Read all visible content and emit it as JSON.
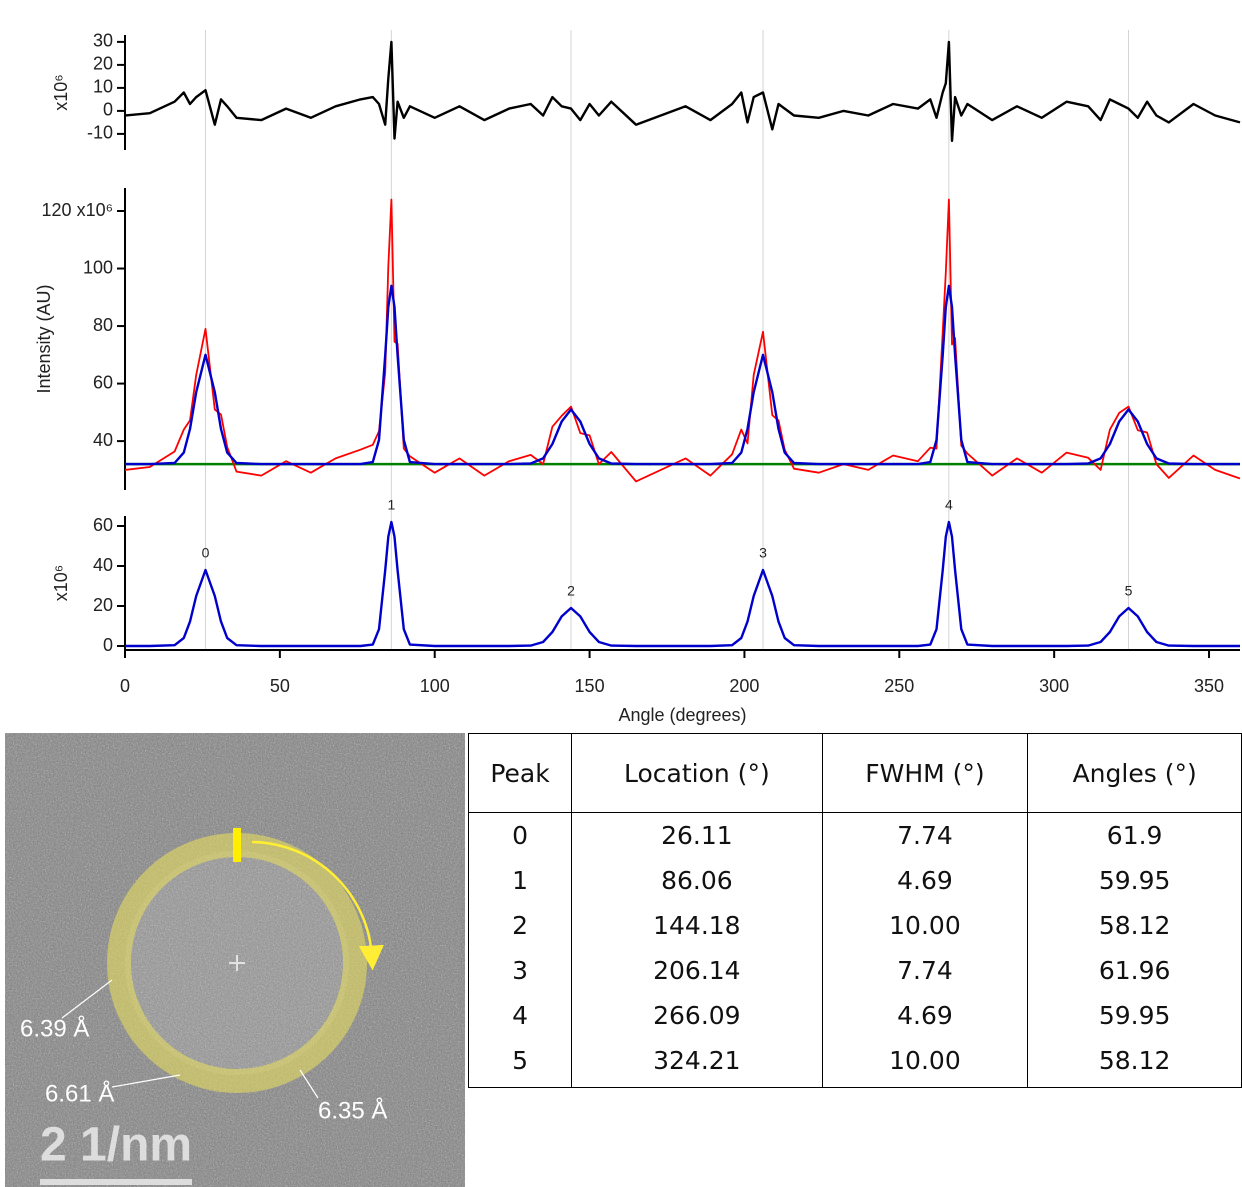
{
  "chart_data": [
    {
      "type": "line",
      "ylabel": "x10⁶",
      "x": [
        0,
        8,
        16,
        19,
        21,
        23,
        26,
        29,
        31,
        33,
        36,
        44,
        52,
        60,
        68,
        76,
        80,
        82,
        84,
        85,
        86,
        87,
        88,
        90,
        92,
        100,
        108,
        116,
        124,
        131,
        135,
        138,
        141,
        144,
        147,
        150,
        153,
        157,
        165,
        173,
        181,
        189,
        196,
        199,
        201,
        203,
        206,
        209,
        211,
        213,
        216,
        224,
        232,
        240,
        248,
        256,
        260,
        262,
        264,
        265,
        266,
        267,
        268,
        270,
        272,
        280,
        288,
        296,
        304,
        311,
        315,
        318,
        321,
        324,
        327,
        330,
        333,
        337,
        345,
        352,
        360
      ],
      "series": [
        {
          "color": "#000000",
          "values": [
            -2,
            -1,
            4,
            8,
            3,
            6,
            9,
            -6,
            5,
            2,
            -3,
            -4,
            1,
            -3,
            2,
            5,
            6,
            3,
            -6,
            14,
            30,
            -12,
            4,
            -3,
            2,
            -3,
            2,
            -4,
            1,
            3,
            -2,
            6,
            2,
            1,
            -4,
            3,
            -2,
            4,
            -6,
            -2,
            2,
            -4,
            3,
            8,
            -5,
            6,
            8,
            -8,
            3,
            1,
            -2,
            -3,
            0,
            -2,
            3,
            1,
            5,
            -3,
            8,
            12,
            30,
            -13,
            6,
            -2,
            3,
            -4,
            2,
            -3,
            4,
            2,
            -4,
            5,
            3,
            1,
            -3,
            4,
            -2,
            -5,
            3,
            -2,
            -5
          ]
        }
      ],
      "xlim": [
        0,
        360
      ],
      "ylim": [
        -17,
        33
      ],
      "yticks": [
        -10,
        0,
        10,
        20,
        30
      ]
    },
    {
      "type": "line",
      "ylabel": "Intensity (AU)",
      "x": [
        0,
        8,
        16,
        19,
        21,
        23,
        26,
        29,
        31,
        33,
        36,
        44,
        52,
        60,
        68,
        76,
        80,
        82,
        84,
        85,
        86,
        87,
        88,
        90,
        92,
        100,
        108,
        116,
        124,
        131,
        135,
        138,
        141,
        144,
        147,
        150,
        153,
        157,
        165,
        173,
        181,
        189,
        196,
        199,
        201,
        203,
        206,
        209,
        211,
        213,
        216,
        224,
        232,
        240,
        248,
        256,
        260,
        262,
        264,
        265,
        266,
        267,
        268,
        270,
        272,
        280,
        288,
        296,
        304,
        311,
        315,
        318,
        321,
        324,
        327,
        330,
        333,
        337,
        345,
        352,
        360
      ],
      "series": [
        {
          "color": "#ff0000",
          "values": [
            30,
            31,
            36.4,
            44,
            47.2,
            63,
            79,
            51,
            49.2,
            38,
            29.4,
            28,
            33,
            29,
            34,
            37,
            38.7,
            43.4,
            63.8,
            100.6,
            124,
            74.6,
            73.8,
            37.4,
            34.7,
            29,
            34,
            28,
            33,
            35.2,
            32,
            45,
            48.8,
            52,
            42.8,
            42,
            32,
            36.2,
            26,
            30,
            34,
            28,
            35.4,
            44,
            39.2,
            63,
            78,
            49,
            47.2,
            37,
            30.4,
            29,
            32,
            30,
            35,
            33,
            37.7,
            37.4,
            77.8,
            98.6,
            124,
            73.6,
            75.8,
            38.4,
            35.7,
            28,
            34,
            29,
            36,
            34.2,
            30,
            44,
            49.8,
            52,
            43.8,
            43,
            32,
            27.2,
            35,
            30,
            27
          ]
        },
        {
          "color": "#0000cc",
          "values": [
            32,
            32,
            32.4,
            36,
            44.2,
            57,
            70,
            57,
            44.2,
            36,
            32.4,
            32,
            32,
            32,
            32,
            32,
            32.7,
            40.4,
            69.8,
            86.6,
            94,
            86.6,
            69.8,
            40.4,
            32.7,
            32,
            32,
            32,
            32,
            32.2,
            34,
            39,
            46.8,
            51,
            46.8,
            39,
            34,
            32.2,
            32,
            32,
            32,
            32,
            32.4,
            36,
            44.2,
            57,
            70,
            57,
            44.2,
            36,
            32.4,
            32,
            32,
            32,
            32,
            32,
            32.7,
            40.4,
            69.8,
            86.6,
            94,
            86.6,
            69.8,
            40.4,
            32.7,
            32,
            32,
            32,
            32,
            32.2,
            34,
            39,
            46.8,
            51,
            46.8,
            39,
            34,
            32.2,
            32,
            32,
            32
          ]
        }
      ],
      "hlines": [
        {
          "value": 32,
          "color": "#008000"
        }
      ],
      "xlim": [
        0,
        360
      ],
      "ylim": [
        23,
        128
      ],
      "yticks": [
        40,
        60,
        80,
        100,
        {
          "value": 120,
          "label": "120 x10⁶"
        }
      ]
    },
    {
      "type": "line",
      "ylabel": "x10⁶",
      "xlabel": "Angle (degrees)",
      "x": [
        0,
        8,
        16,
        19,
        21,
        23,
        26,
        29,
        31,
        33,
        36,
        44,
        52,
        60,
        68,
        76,
        80,
        82,
        84,
        85,
        86,
        87,
        88,
        90,
        92,
        100,
        108,
        116,
        124,
        131,
        135,
        138,
        141,
        144,
        147,
        150,
        153,
        157,
        165,
        173,
        181,
        189,
        196,
        199,
        201,
        203,
        206,
        209,
        211,
        213,
        216,
        224,
        232,
        240,
        248,
        256,
        260,
        262,
        264,
        265,
        266,
        267,
        268,
        270,
        272,
        280,
        288,
        296,
        304,
        311,
        315,
        318,
        321,
        324,
        327,
        330,
        333,
        337,
        345,
        352,
        360
      ],
      "series": [
        {
          "color": "#0000cc",
          "values": [
            0,
            0,
            0.4,
            4,
            12.2,
            25,
            38,
            25,
            12.2,
            4,
            0.4,
            0,
            0,
            0,
            0,
            0,
            0.7,
            8.4,
            37.8,
            54.6,
            62,
            54.6,
            37.8,
            8.4,
            0.7,
            0,
            0,
            0,
            0,
            0.2,
            2,
            7,
            14.8,
            19,
            14.8,
            7,
            2,
            0.2,
            0,
            0,
            0,
            0,
            0.4,
            4,
            12.2,
            25,
            38,
            25,
            12.2,
            4,
            0.4,
            0,
            0,
            0,
            0,
            0,
            0.7,
            8.4,
            37.8,
            54.6,
            62,
            54.6,
            37.8,
            8.4,
            0.7,
            0,
            0,
            0,
            0,
            0.2,
            2,
            7,
            14.8,
            19,
            14.8,
            7,
            2,
            0.2,
            0,
            0,
            0
          ]
        }
      ],
      "peak_labels": [
        "0",
        "1",
        "2",
        "3",
        "4",
        "5"
      ],
      "xlim": [
        0,
        360
      ],
      "ylim": [
        -2,
        65
      ],
      "yticks": [
        0,
        20,
        40,
        60
      ],
      "xticks": [
        0,
        50,
        100,
        150,
        200,
        250,
        300,
        350
      ]
    }
  ],
  "image": {
    "labels": [
      "6.39 Å",
      "6.61 Å",
      "6.35 Å"
    ],
    "scale_bar": "2 1/nm"
  },
  "table": {
    "header": [
      "Peak",
      "Location (°)",
      "FWHM (°)",
      "Angles (°)"
    ],
    "rows": [
      [
        "0",
        "26.11",
        "7.74",
        "61.9"
      ],
      [
        "1",
        "86.06",
        "4.69",
        "59.95"
      ],
      [
        "2",
        "144.18",
        "10.00",
        "58.12"
      ],
      [
        "3",
        "206.14",
        "7.74",
        "61.96"
      ],
      [
        "4",
        "266.09",
        "4.69",
        "59.95"
      ],
      [
        "5",
        "324.21",
        "10.00",
        "58.12"
      ]
    ]
  }
}
